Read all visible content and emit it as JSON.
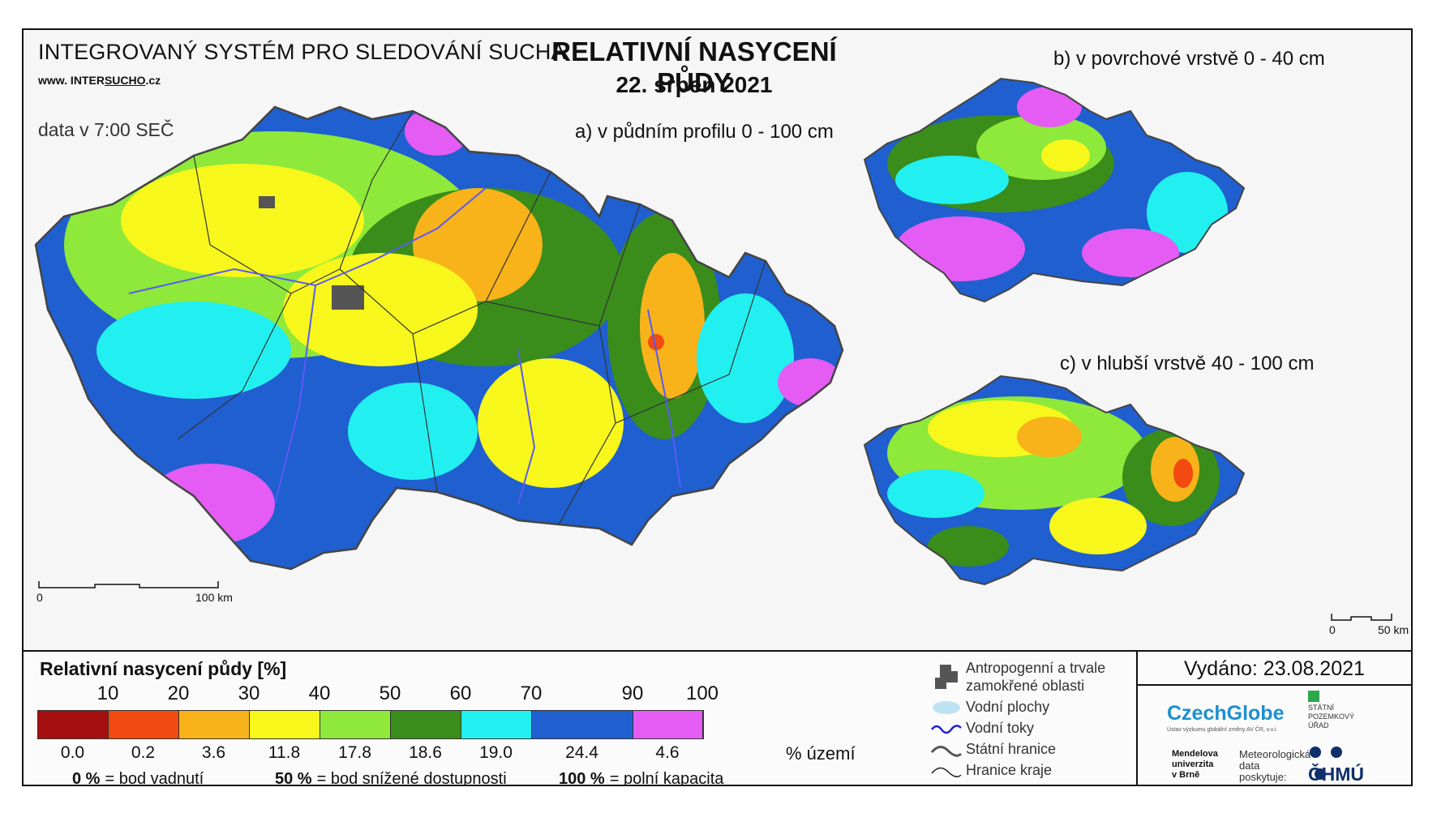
{
  "header": {
    "system": "INTEGROVANÝ SYSTÉM PRO SLEDOVÁNÍ SUCHA",
    "www_prefix": "www. INTER",
    "www_underlined": "SUCHO",
    "www_suffix": ".cz",
    "data_time": "data v 7:00 SEČ",
    "title": "RELATIVNÍ NASYCENÍ PŮDY",
    "date": "22. srpen 2021"
  },
  "maps": {
    "a_label": "a) v půdním profilu 0 - 100 cm",
    "b_label": "b) v povrchové vrstvě 0 - 40 cm",
    "c_label": "c) v hlubší vrstvě 40 - 100 cm"
  },
  "scalebars": {
    "main_start": "0",
    "main_end": "100 km",
    "small_start": "0",
    "small_end": "50 km"
  },
  "legend": {
    "title": "Relativní nasycení půdy [%]",
    "thresholds": [
      "10",
      "20",
      "30",
      "40",
      "50",
      "60",
      "70",
      "90",
      "100"
    ],
    "classes": [
      {
        "color": "#a50f0f",
        "area_pct": "0.0"
      },
      {
        "color": "#f24a10",
        "area_pct": "0.2"
      },
      {
        "color": "#f8b21a",
        "area_pct": "3.6"
      },
      {
        "color": "#f7f71c",
        "area_pct": "11.8"
      },
      {
        "color": "#8ee93a",
        "area_pct": "17.8"
      },
      {
        "color": "#3a8c1b",
        "area_pct": "18.6"
      },
      {
        "color": "#22f0f0",
        "area_pct": "19.0"
      },
      {
        "color": "#1f5fd0",
        "area_pct": "24.4"
      },
      {
        "color": "#e45cf3",
        "area_pct": "4.6"
      }
    ],
    "area_unit": "% území",
    "definitions": [
      {
        "value": "0 %",
        "text": "= bod vadnutí"
      },
      {
        "value": "50 %",
        "text": "= bod snížené dostupnosti"
      },
      {
        "value": "100 %",
        "text": "= polní kapacita"
      }
    ],
    "symbols": {
      "anthropogenic": "Antropogenní a trvale",
      "anthropogenic_2": "zamokřené oblasti",
      "water_bodies": "Vodní plochy",
      "rivers": "Vodní toky",
      "state_border": "Státní hranice",
      "region_border": "Hranice kraje"
    }
  },
  "footer": {
    "issued": "Vydáno: 23.08.2021",
    "czechglobe": "CzechGlobe",
    "czechglobe_sub": "Ústav výzkumu globální změny AV ČR, v.v.i.",
    "spu": [
      "STÁTNÍ",
      "POZEMKOVÝ",
      "ÚŘAD"
    ],
    "mendel": [
      "Mendelova",
      "univerzita",
      "v Brně"
    ],
    "meteo": [
      "Meteorologická",
      "data",
      "poskytuje:"
    ],
    "chmu": "ČHMÚ"
  }
}
